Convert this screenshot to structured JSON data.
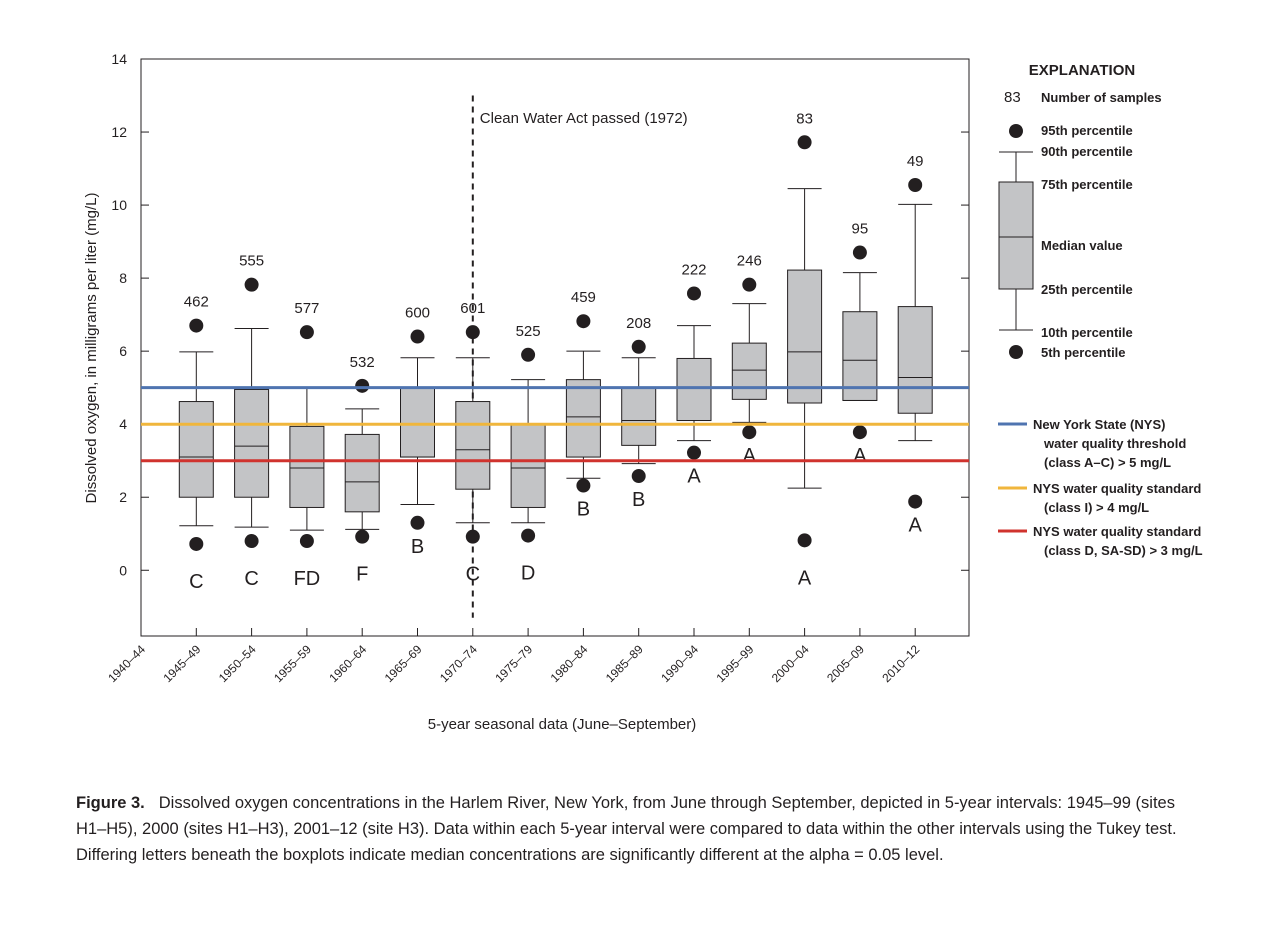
{
  "chart_data": {
    "type": "boxplot",
    "xlabel": "5-year seasonal data (June–September)",
    "ylabel": "Dissolved oxygen, in milligrams per liter (mg/L)",
    "ylim": [
      -1.8,
      14
    ],
    "yticks": [
      0,
      2,
      4,
      6,
      8,
      10,
      12,
      14
    ],
    "categories": [
      "1940–44",
      "1945–49",
      "1950–54",
      "1955–59",
      "1960–64",
      "1965–69",
      "1970–74",
      "1975–79",
      "1980–84",
      "1985–89",
      "1990–94",
      "1995–99",
      "2000–04",
      "2005–09",
      "2010–12"
    ],
    "grid": false,
    "boxes": [
      {
        "category": "1945–49",
        "n": "462",
        "p5": 0.72,
        "p10": 1.22,
        "p25": 2.0,
        "median": 3.1,
        "p75": 4.62,
        "p90": 5.98,
        "p95": 6.7,
        "group": "C"
      },
      {
        "category": "1950–54",
        "n": "555",
        "p5": 0.8,
        "p10": 1.18,
        "p25": 2.0,
        "median": 3.4,
        "p75": 4.95,
        "p90": 6.62,
        "p95": 7.82,
        "group": "C"
      },
      {
        "category": "1955–59",
        "n": "577",
        "p5": 0.8,
        "p10": 1.1,
        "p25": 1.72,
        "median": 2.8,
        "p75": 3.94,
        "p90": 5.02,
        "p95": 6.52,
        "group": "FD"
      },
      {
        "category": "1960–64",
        "n": "532",
        "p5": 0.92,
        "p10": 1.12,
        "p25": 1.6,
        "median": 2.42,
        "p75": 3.72,
        "p90": 4.42,
        "p95": 5.05,
        "group": "F"
      },
      {
        "category": "1965–69",
        "n": "600",
        "p5": 1.3,
        "p10": 1.8,
        "p25": 3.1,
        "median": 3.1,
        "p75": 5.0,
        "p90": 5.82,
        "p95": 6.4,
        "group": "B"
      },
      {
        "category": "1970–74",
        "n": "601",
        "p5": 0.92,
        "p10": 1.3,
        "p25": 2.22,
        "median": 3.3,
        "p75": 4.62,
        "p90": 5.82,
        "p95": 6.52,
        "group": "C"
      },
      {
        "category": "1975–79",
        "n": "525",
        "p5": 0.95,
        "p10": 1.3,
        "p25": 1.72,
        "median": 2.8,
        "p75": 3.98,
        "p90": 5.22,
        "p95": 5.9,
        "group": "D"
      },
      {
        "category": "1980–84",
        "n": "459",
        "p5": 2.32,
        "p10": 2.52,
        "p25": 3.1,
        "median": 4.2,
        "p75": 5.22,
        "p90": 6.0,
        "p95": 6.82,
        "group": "B"
      },
      {
        "category": "1985–89",
        "n": "208",
        "p5": 2.58,
        "p10": 2.92,
        "p25": 3.42,
        "median": 4.1,
        "p75": 5.0,
        "p90": 5.82,
        "p95": 6.12,
        "group": "B"
      },
      {
        "category": "1990–94",
        "n": "222",
        "p5": 3.22,
        "p10": 3.55,
        "p25": 4.1,
        "median": 4.1,
        "p75": 5.8,
        "p90": 6.7,
        "p95": 7.58,
        "group": "A"
      },
      {
        "category": "1995–99",
        "n": "246",
        "p5": 3.78,
        "p10": 4.05,
        "p25": 4.68,
        "median": 5.48,
        "p75": 6.22,
        "p90": 7.3,
        "p95": 7.82,
        "group": "A"
      },
      {
        "category": "2000–04",
        "n": "83",
        "p5": 0.82,
        "p10": 2.25,
        "p25": 4.58,
        "median": 5.98,
        "p75": 8.22,
        "p90": 10.45,
        "p95": 11.72,
        "group": "A"
      },
      {
        "category": "2005–09",
        "n": "95",
        "p5": 3.78,
        "p10": 4.65,
        "p25": 4.65,
        "median": 5.75,
        "p75": 7.08,
        "p90": 8.15,
        "p95": 8.7,
        "group": "A"
      },
      {
        "category": "2010–12",
        "n": "49",
        "p5": 1.88,
        "p10": 3.55,
        "p25": 4.3,
        "median": 5.28,
        "p75": 7.22,
        "p90": 10.02,
        "p95": 10.55,
        "group": "A"
      }
    ],
    "thresholds": [
      {
        "value": 5,
        "color": "#4f74b0"
      },
      {
        "value": 4,
        "color": "#f0b63c"
      },
      {
        "value": 3,
        "color": "#d0332e"
      }
    ],
    "annotation": {
      "text": "Clean Water Act passed (1972)",
      "category": "1970–74",
      "y_top": 13.0,
      "y_bottom": -1.3
    },
    "box_fill": "#c3c4c6"
  },
  "legend": {
    "title": "EXPLANATION",
    "sample_number": "83",
    "sample_label": "Number of samples",
    "p95": "95th percentile",
    "p90": "90th percentile",
    "p75": "75th percentile",
    "median": "Median value",
    "p25": "25th percentile",
    "p10": "10th percentile",
    "p5": "5th percentile",
    "nys_ac": [
      "New York State (NYS)",
      "water quality threshold",
      "(class A–C)  > 5 mg/L"
    ],
    "nys_i": [
      "NYS water quality standard",
      "(class I)  > 4 mg/L"
    ],
    "nys_d": [
      "NYS water quality standard",
      "(class D, SA-SD)  > 3 mg/L"
    ]
  },
  "caption": {
    "label": "Figure 3.",
    "text": "Dissolved oxygen concentrations in the Harlem River, New York, from June through September, depicted in 5-year intervals: 1945–99 (sites H1–H5), 2000 (sites H1–H3), 2001–12 (site H3). Data within each 5-year interval were compared to data within the other intervals using the Tukey test. Differing letters beneath the boxplots indicate median concentrations are significantly different at the alpha = 0.05 level."
  }
}
